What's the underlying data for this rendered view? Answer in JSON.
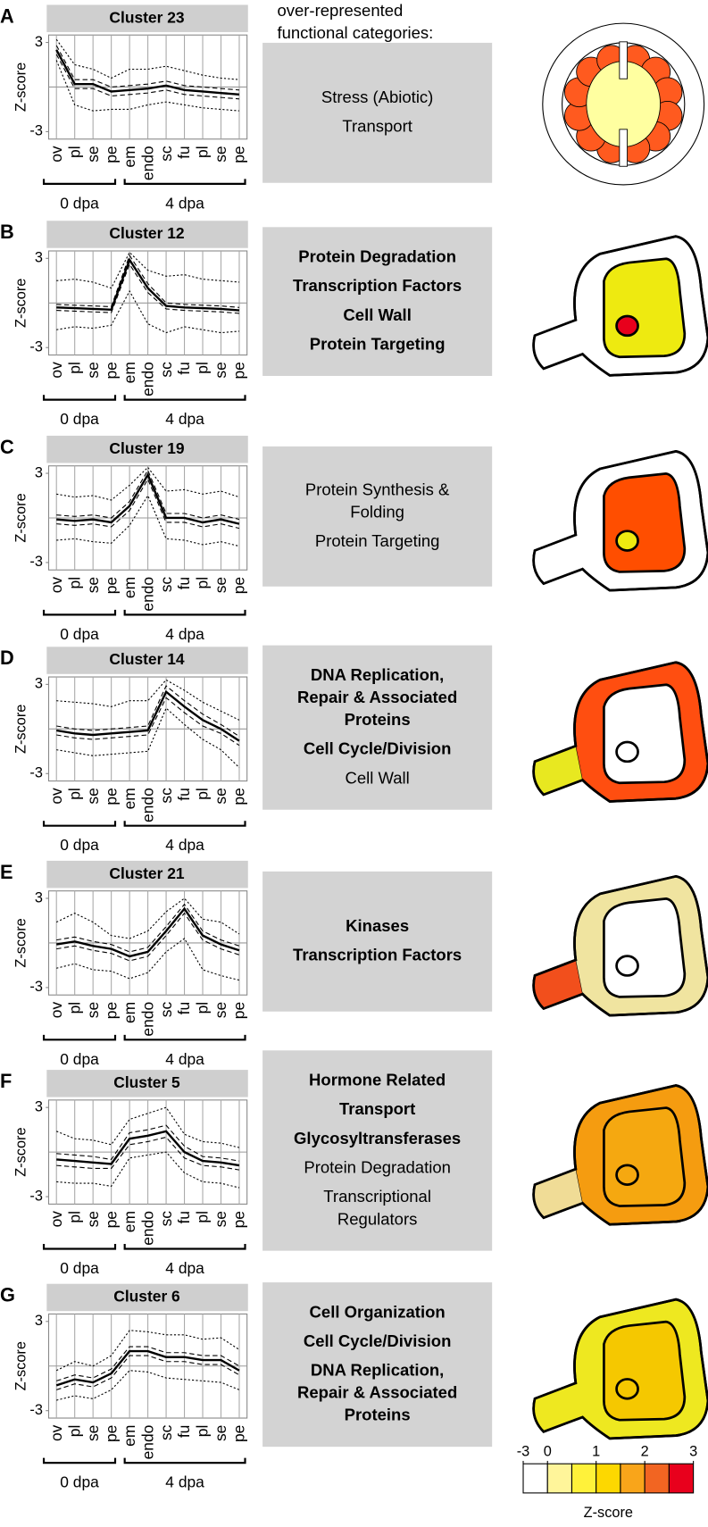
{
  "header": {
    "lines": [
      "over-represented",
      "functional categories:"
    ]
  },
  "colorbar": {
    "edges": [
      -3,
      0,
      0.5,
      1,
      1.5,
      2,
      2.5,
      3
    ],
    "colors": [
      "#ffffff",
      "#fff59a",
      "#fff23a",
      "#fdd800",
      "#f9a51a",
      "#f26522",
      "#e8001c"
    ],
    "ticks": [
      -3,
      0,
      1,
      2,
      3
    ],
    "label": "Z-score"
  },
  "chart_data": [
    {
      "type": "line",
      "panel": "A",
      "title": "Cluster 23",
      "ylabel": "Z-score",
      "categories": [
        "ov",
        "pl",
        "se",
        "pe",
        "em",
        "endo",
        "sc",
        "fu",
        "pl",
        "se",
        "pe"
      ],
      "highlighted": [
        0
      ],
      "highlight_color": "#e8302a",
      "groups": [
        {
          "label": "0 dpa",
          "from": 0,
          "to": 3
        },
        {
          "label": "4 dpa",
          "from": 4,
          "to": 10
        }
      ],
      "ylim": [
        -3.5,
        3.5
      ],
      "yticks": [
        3,
        -3
      ],
      "hline": 0,
      "series": [
        {
          "style": "solid",
          "width": 2.2,
          "values": [
            2.5,
            0.2,
            0.2,
            -0.3,
            -0.2,
            -0.1,
            0.1,
            -0.2,
            -0.3,
            -0.4,
            -0.5
          ]
        },
        {
          "style": "dashed",
          "width": 1,
          "values": [
            2.8,
            0.5,
            0.5,
            0,
            0.1,
            0.2,
            0.4,
            0.1,
            0,
            -0.1,
            -0.2
          ]
        },
        {
          "style": "dashed",
          "width": 1,
          "values": [
            2.2,
            -0.1,
            -0.1,
            -0.6,
            -0.5,
            -0.4,
            -0.2,
            -0.5,
            -0.6,
            -0.7,
            -0.8
          ]
        },
        {
          "style": "dotted",
          "width": 1,
          "values": [
            3.2,
            1.5,
            1.2,
            0.6,
            1.2,
            1.2,
            1.4,
            1.1,
            0.8,
            0.6,
            0.5
          ]
        },
        {
          "style": "dotted",
          "width": 1,
          "values": [
            1.8,
            -1.2,
            -1.6,
            -1.5,
            -1.5,
            -1.2,
            -1.0,
            -1.2,
            -1.4,
            -1.5,
            -1.6
          ]
        }
      ],
      "functional_categories": [
        {
          "lines": [
            "Stress (Abiotic)"
          ],
          "bold": false
        },
        {
          "lines": [
            "Transport"
          ],
          "bold": false
        }
      ],
      "seed": {
        "view": "ovule",
        "ring": "#ff5a1f",
        "center": "#ffffa0"
      }
    },
    {
      "type": "line",
      "panel": "B",
      "title": "Cluster 12",
      "ylabel": "Z-score",
      "categories": [
        "ov",
        "pl",
        "se",
        "pe",
        "em",
        "endo",
        "sc",
        "fu",
        "pl",
        "se",
        "pe"
      ],
      "highlighted": [
        4
      ],
      "highlight_color": "#e8302a",
      "groups": [
        {
          "label": "0 dpa",
          "from": 0,
          "to": 3
        },
        {
          "label": "4 dpa",
          "from": 4,
          "to": 10
        }
      ],
      "ylim": [
        -3.5,
        3.5
      ],
      "yticks": [
        3,
        -3
      ],
      "hline": 0,
      "series": [
        {
          "style": "solid",
          "width": 2.2,
          "values": [
            -0.3,
            -0.35,
            -0.4,
            -0.45,
            2.9,
            1.0,
            -0.2,
            -0.3,
            -0.35,
            -0.4,
            -0.5
          ]
        },
        {
          "style": "dashed",
          "width": 1,
          "values": [
            -0.1,
            -0.15,
            -0.2,
            -0.25,
            3.2,
            1.3,
            0,
            -0.1,
            -0.15,
            -0.2,
            -0.3
          ]
        },
        {
          "style": "dashed",
          "width": 1,
          "values": [
            -0.5,
            -0.55,
            -0.6,
            -0.65,
            2.6,
            0.7,
            -0.4,
            -0.5,
            -0.55,
            -0.6,
            -0.7
          ]
        },
        {
          "style": "dotted",
          "width": 1,
          "values": [
            1.5,
            1.6,
            1.4,
            1.0,
            3.4,
            2.2,
            1.8,
            1.9,
            1.6,
            1.5,
            1.4
          ]
        },
        {
          "style": "dotted",
          "width": 1,
          "values": [
            -1.8,
            -1.6,
            -1.7,
            -1.5,
            0.8,
            -1.4,
            -2.0,
            -1.6,
            -1.8,
            -2.0,
            -1.9
          ]
        }
      ],
      "functional_categories": [
        {
          "lines": [
            "Protein Degradation"
          ],
          "bold": true
        },
        {
          "lines": [
            "Transcription Factors"
          ],
          "bold": true
        },
        {
          "lines": [
            "Cell Wall"
          ],
          "bold": true
        },
        {
          "lines": [
            "Protein Targeting"
          ],
          "bold": true
        }
      ],
      "seed": {
        "view": "seed",
        "stalk": "#ffffff",
        "outer": "#ffffff",
        "inner": "#eeea10",
        "core": "#e8001c"
      }
    },
    {
      "type": "line",
      "panel": "C",
      "title": "Cluster 19",
      "ylabel": "Z-score",
      "categories": [
        "ov",
        "pl",
        "se",
        "pe",
        "em",
        "endo",
        "sc",
        "fu",
        "pl",
        "se",
        "pe"
      ],
      "highlighted": [
        5
      ],
      "highlight_color": "#e8302a",
      "groups": [
        {
          "label": "0 dpa",
          "from": 0,
          "to": 3
        },
        {
          "label": "4 dpa",
          "from": 4,
          "to": 10
        }
      ],
      "ylim": [
        -3.5,
        3.5
      ],
      "yticks": [
        3,
        -3
      ],
      "hline": 0,
      "series": [
        {
          "style": "solid",
          "width": 2.2,
          "values": [
            -0.1,
            -0.2,
            -0.1,
            -0.3,
            0.8,
            2.9,
            0,
            0,
            -0.3,
            -0.1,
            -0.4
          ]
        },
        {
          "style": "dashed",
          "width": 1,
          "values": [
            0.2,
            0.1,
            0.2,
            0,
            1.1,
            3.2,
            0.3,
            0.3,
            0,
            0.2,
            -0.1
          ]
        },
        {
          "style": "dashed",
          "width": 1,
          "values": [
            -0.4,
            -0.5,
            -0.4,
            -0.6,
            0.5,
            2.6,
            -0.3,
            -0.3,
            -0.6,
            -0.4,
            -0.7
          ]
        },
        {
          "style": "dotted",
          "width": 1,
          "values": [
            1.6,
            1.4,
            1.5,
            1.2,
            2.2,
            3.4,
            1.8,
            1.9,
            1.6,
            1.8,
            1.4
          ]
        },
        {
          "style": "dotted",
          "width": 1,
          "values": [
            -1.5,
            -1.4,
            -1.6,
            -1.7,
            -0.5,
            1.5,
            -1.4,
            -1.5,
            -1.8,
            -1.6,
            -1.9
          ]
        }
      ],
      "functional_categories": [
        {
          "lines": [
            "Protein Synthesis &",
            "Folding"
          ],
          "bold": false
        },
        {
          "lines": [
            "Protein Targeting"
          ],
          "bold": false
        }
      ],
      "seed": {
        "view": "seed",
        "stalk": "#ffffff",
        "outer": "#ffffff",
        "inner": "#ff4e00",
        "core": "#eeea10"
      }
    },
    {
      "type": "line",
      "panel": "D",
      "title": "Cluster 14",
      "ylabel": "Z-score",
      "categories": [
        "ov",
        "pl",
        "se",
        "pe",
        "em",
        "endo",
        "sc",
        "fu",
        "pl",
        "se",
        "pe"
      ],
      "highlighted": [
        6
      ],
      "highlight_color": "#e8302a",
      "groups": [
        {
          "label": "0 dpa",
          "from": 0,
          "to": 3
        },
        {
          "label": "4 dpa",
          "from": 4,
          "to": 10
        }
      ],
      "ylim": [
        -3.5,
        3.5
      ],
      "yticks": [
        3,
        -3
      ],
      "hline": 0,
      "series": [
        {
          "style": "solid",
          "width": 2.2,
          "values": [
            -0.1,
            -0.3,
            -0.4,
            -0.3,
            -0.2,
            -0.1,
            2.5,
            1.5,
            0.6,
            0,
            -0.8
          ]
        },
        {
          "style": "dashed",
          "width": 1,
          "values": [
            0.2,
            0,
            -0.1,
            0,
            0.1,
            0.2,
            2.9,
            1.9,
            1.0,
            0.3,
            -0.5
          ]
        },
        {
          "style": "dashed",
          "width": 1,
          "values": [
            -0.4,
            -0.6,
            -0.7,
            -0.6,
            -0.5,
            -0.4,
            2.1,
            1.1,
            0.2,
            -0.3,
            -1.1
          ]
        },
        {
          "style": "dotted",
          "width": 1,
          "values": [
            1.9,
            1.8,
            1.7,
            1.5,
            1.9,
            1.9,
            3.3,
            2.6,
            1.8,
            1.2,
            0.6
          ]
        },
        {
          "style": "dotted",
          "width": 1,
          "values": [
            -1.4,
            -1.6,
            -1.8,
            -1.7,
            -1.6,
            -1.5,
            1.4,
            0.3,
            -0.7,
            -1.4,
            -2.6
          ]
        }
      ],
      "functional_categories": [
        {
          "lines": [
            "DNA Replication,",
            "Repair & Associated",
            "Proteins"
          ],
          "bold": true
        },
        {
          "lines": [
            "Cell Cycle/Division"
          ],
          "bold": true
        },
        {
          "lines": [
            "Cell Wall"
          ],
          "bold": false
        }
      ],
      "seed": {
        "view": "seed",
        "stalk": "#e8e820",
        "outer": "#ff4e10",
        "inner": "#ffffff",
        "core": "#ffffff"
      }
    },
    {
      "type": "line",
      "panel": "E",
      "title": "Cluster 21",
      "ylabel": "Z-score",
      "categories": [
        "ov",
        "pl",
        "se",
        "pe",
        "em",
        "endo",
        "sc",
        "fu",
        "pl",
        "se",
        "pe"
      ],
      "highlighted": [
        7
      ],
      "highlight_color": "#e8302a",
      "groups": [
        {
          "label": "0 dpa",
          "from": 0,
          "to": 3
        },
        {
          "label": "4 dpa",
          "from": 4,
          "to": 10
        }
      ],
      "ylim": [
        -3.5,
        3.5
      ],
      "yticks": [
        3,
        -3
      ],
      "hline": 0,
      "series": [
        {
          "style": "solid",
          "width": 2.2,
          "values": [
            -0.1,
            0.1,
            -0.2,
            -0.4,
            -0.9,
            -0.6,
            0.8,
            2.3,
            0.5,
            -0.1,
            -0.5
          ]
        },
        {
          "style": "dashed",
          "width": 1,
          "values": [
            0.2,
            0.4,
            0.1,
            -0.1,
            -0.6,
            -0.3,
            1.1,
            2.6,
            0.8,
            0.2,
            -0.2
          ]
        },
        {
          "style": "dashed",
          "width": 1,
          "values": [
            -0.4,
            -0.2,
            -0.5,
            -0.7,
            -1.2,
            -0.9,
            0.5,
            2.0,
            0.2,
            -0.4,
            -0.8
          ]
        },
        {
          "style": "dotted",
          "width": 1,
          "values": [
            1.4,
            2.0,
            1.4,
            0.5,
            0.3,
            0.8,
            2.1,
            3.0,
            1.6,
            1.4,
            0.6
          ]
        },
        {
          "style": "dotted",
          "width": 1,
          "values": [
            -1.7,
            -1.4,
            -1.8,
            -1.9,
            -2.4,
            -2.0,
            -0.6,
            0.3,
            -1.8,
            -2.2,
            -2.5
          ]
        }
      ],
      "functional_categories": [
        {
          "lines": [
            "Kinases"
          ],
          "bold": true
        },
        {
          "lines": [
            "Transcription Factors"
          ],
          "bold": true
        }
      ],
      "seed": {
        "view": "seed",
        "stalk": "#f24f1c",
        "outer": "#f0e4a0",
        "inner": "#ffffff",
        "core": "#ffffff"
      }
    },
    {
      "type": "line",
      "panel": "F",
      "title": "Cluster 5",
      "ylabel": "Z-score",
      "categories": [
        "ov",
        "pl",
        "se",
        "pe",
        "em",
        "endo",
        "sc",
        "fu",
        "pl",
        "se",
        "pe"
      ],
      "highlighted": [
        4,
        5,
        6
      ],
      "highlight_color": "#e8302a",
      "groups": [
        {
          "label": "0 dpa",
          "from": 0,
          "to": 3
        },
        {
          "label": "4 dpa",
          "from": 4,
          "to": 10
        }
      ],
      "ylim": [
        -3.5,
        3.5
      ],
      "yticks": [
        3,
        -3
      ],
      "hline": 0,
      "series": [
        {
          "style": "solid",
          "width": 2.2,
          "values": [
            -0.5,
            -0.6,
            -0.7,
            -0.8,
            0.9,
            1.1,
            1.4,
            0,
            -0.6,
            -0.7,
            -0.9
          ]
        },
        {
          "style": "dashed",
          "width": 1,
          "values": [
            -0.1,
            -0.2,
            -0.3,
            -0.5,
            1.3,
            1.5,
            1.8,
            0.4,
            -0.3,
            -0.4,
            -0.6
          ]
        },
        {
          "style": "dashed",
          "width": 1,
          "values": [
            -0.9,
            -1.0,
            -1.1,
            -1.1,
            0.5,
            0.7,
            1.0,
            -0.4,
            -0.9,
            -1.0,
            -1.2
          ]
        },
        {
          "style": "dotted",
          "width": 1,
          "values": [
            1.4,
            0.9,
            0.8,
            0.5,
            2.2,
            2.6,
            3.0,
            1.2,
            0.7,
            0.6,
            0.3
          ]
        },
        {
          "style": "dotted",
          "width": 1,
          "values": [
            -2.0,
            -2.1,
            -2.1,
            -2.3,
            -0.4,
            -0.2,
            0,
            -1.4,
            -2.0,
            -2.1,
            -2.4
          ]
        }
      ],
      "functional_categories": [
        {
          "lines": [
            "Hormone Related"
          ],
          "bold": true
        },
        {
          "lines": [
            "Transport"
          ],
          "bold": true
        },
        {
          "lines": [
            "Glycosyltransferases"
          ],
          "bold": true
        },
        {
          "lines": [
            "Protein Degradation"
          ],
          "bold": false
        },
        {
          "lines": [
            "Transcriptional",
            "Regulators"
          ],
          "bold": false
        }
      ],
      "seed": {
        "view": "seed",
        "stalk": "#f0dc96",
        "outer": "#f59c10",
        "inner": "#f5a810",
        "core": "#f5a810"
      }
    },
    {
      "type": "line",
      "panel": "G",
      "title": "Cluster 6",
      "ylabel": "Z-score",
      "categories": [
        "ov",
        "pl",
        "se",
        "pe",
        "em",
        "endo",
        "sc",
        "fu",
        "pl",
        "se",
        "pe"
      ],
      "highlighted": [
        4,
        5,
        6,
        7,
        8,
        9
      ],
      "highlight_color": "#e8302a",
      "groups": [
        {
          "label": "0 dpa",
          "from": 0,
          "to": 3
        },
        {
          "label": "4 dpa",
          "from": 4,
          "to": 10
        }
      ],
      "ylim": [
        -3.5,
        3.5
      ],
      "yticks": [
        3,
        -3
      ],
      "hline": 0,
      "series": [
        {
          "style": "solid",
          "width": 2.2,
          "values": [
            -1.3,
            -0.9,
            -1.1,
            -0.5,
            1.0,
            1.0,
            0.6,
            0.6,
            0.4,
            0.4,
            -0.3
          ]
        },
        {
          "style": "dashed",
          "width": 1,
          "values": [
            -1.0,
            -0.6,
            -0.8,
            -0.2,
            1.3,
            1.3,
            0.9,
            0.9,
            0.7,
            0.7,
            0
          ]
        },
        {
          "style": "dashed",
          "width": 1,
          "values": [
            -1.6,
            -1.2,
            -1.4,
            -0.8,
            0.7,
            0.7,
            0.3,
            0.3,
            0.1,
            0.1,
            -0.6
          ]
        },
        {
          "style": "dotted",
          "width": 1,
          "values": [
            -0.3,
            0.3,
            0,
            0.7,
            2.4,
            2.3,
            2.1,
            2.1,
            1.8,
            1.9,
            1.1
          ]
        },
        {
          "style": "dotted",
          "width": 1,
          "values": [
            -2.3,
            -2.0,
            -2.2,
            -1.6,
            -0.3,
            -0.4,
            -0.8,
            -0.9,
            -1.0,
            -1.1,
            -1.6
          ]
        }
      ],
      "functional_categories": [
        {
          "lines": [
            "Cell Organization"
          ],
          "bold": true
        },
        {
          "lines": [
            "Cell Cycle/Division"
          ],
          "bold": true
        },
        {
          "lines": [
            "DNA Replication,",
            "Repair & Associated",
            "Proteins"
          ],
          "bold": true
        }
      ],
      "seed": {
        "view": "seed",
        "stalk": "#eee820",
        "outer": "#eee820",
        "inner": "#f5c800",
        "core": "#f5c800"
      }
    }
  ]
}
